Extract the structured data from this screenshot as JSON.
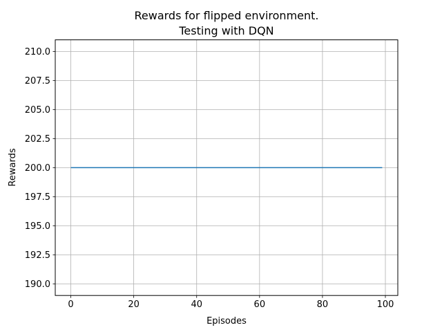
{
  "chart_data": {
    "type": "line",
    "title": "Rewards for flipped environment.\nTesting with DQN",
    "title_lines": [
      "Rewards for flipped environment.",
      "Testing with DQN"
    ],
    "xlabel": "Episodes",
    "ylabel": "Rewards",
    "xlim": [
      -4.95,
      103.95
    ],
    "ylim": [
      189,
      211
    ],
    "x_ticks": [
      0,
      20,
      40,
      60,
      80,
      100
    ],
    "y_ticks": [
      190.0,
      192.5,
      195.0,
      197.5,
      200.0,
      202.5,
      205.0,
      207.5,
      210.0
    ],
    "x_tick_labels": [
      "0",
      "20",
      "40",
      "60",
      "80",
      "100"
    ],
    "y_tick_labels": [
      "190.0",
      "192.5",
      "195.0",
      "197.5",
      "200.0",
      "202.5",
      "205.0",
      "207.5",
      "210.0"
    ],
    "grid": true,
    "series": [
      {
        "x_start": 0,
        "x_end": 99,
        "step": 1,
        "constant_value": 200,
        "color": "#1f77b4"
      }
    ]
  }
}
